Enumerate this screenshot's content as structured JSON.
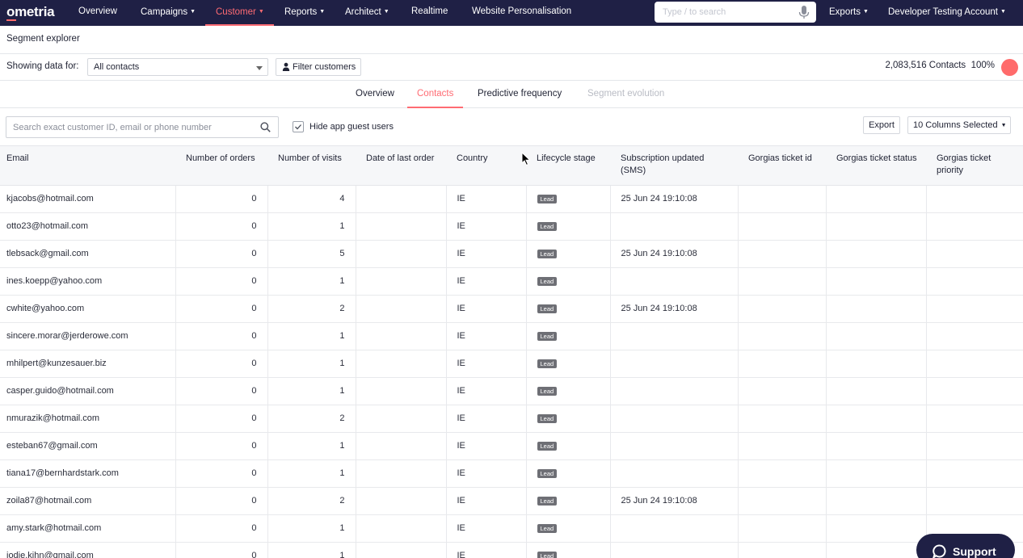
{
  "nav": {
    "logo": "ometria",
    "items": [
      {
        "label": "Overview",
        "caret": false,
        "active": false
      },
      {
        "label": "Campaigns",
        "caret": true,
        "active": false
      },
      {
        "label": "Customer",
        "caret": true,
        "active": true
      },
      {
        "label": "Reports",
        "caret": true,
        "active": false
      },
      {
        "label": "Architect",
        "caret": true,
        "active": false
      },
      {
        "label": "Realtime",
        "caret": false,
        "active": false
      },
      {
        "label": "Website Personalisation",
        "caret": false,
        "active": false
      }
    ],
    "search_placeholder": "Type / to search",
    "exports_label": "Exports",
    "account_label": "Developer Testing Account"
  },
  "page": {
    "title": "Segment explorer",
    "showing_label": "Showing data for:",
    "segment_value": "All contacts",
    "filter_label": "Filter customers",
    "contacts_count": "2,083,516 Contacts",
    "percent": "100%",
    "avatar_color": "#ff6b6b"
  },
  "tabs": [
    {
      "label": "Overview",
      "state": "normal"
    },
    {
      "label": "Contacts",
      "state": "active"
    },
    {
      "label": "Predictive frequency",
      "state": "normal"
    },
    {
      "label": "Segment evolution",
      "state": "disabled"
    }
  ],
  "toolbar": {
    "search_placeholder": "Search exact customer ID, email or phone number",
    "hide_guests_label": "Hide app guest users",
    "hide_guests_checked": true,
    "export_label": "Export",
    "columns_label": "10 Columns Selected"
  },
  "table": {
    "headers": [
      "Email",
      "Number of orders",
      "Number of visits",
      "Date of last order",
      "Country",
      "Lifecycle stage",
      "Subscription updated (SMS)",
      "Gorgias ticket id",
      "Gorgias ticket status",
      "Gorgias ticket priority"
    ],
    "rows": [
      [
        "kjacobs@hotmail.com",
        "0",
        "4",
        "",
        "IE",
        "Lead",
        "25 Jun 24 19:10:08",
        "",
        "",
        ""
      ],
      [
        "otto23@hotmail.com",
        "0",
        "1",
        "",
        "IE",
        "Lead",
        "",
        "",
        "",
        ""
      ],
      [
        "tlebsack@gmail.com",
        "0",
        "5",
        "",
        "IE",
        "Lead",
        "25 Jun 24 19:10:08",
        "",
        "",
        ""
      ],
      [
        "ines.koepp@yahoo.com",
        "0",
        "1",
        "",
        "IE",
        "Lead",
        "",
        "",
        "",
        ""
      ],
      [
        "cwhite@yahoo.com",
        "0",
        "2",
        "",
        "IE",
        "Lead",
        "25 Jun 24 19:10:08",
        "",
        "",
        ""
      ],
      [
        "sincere.morar@jerderowe.com",
        "0",
        "1",
        "",
        "IE",
        "Lead",
        "",
        "",
        "",
        ""
      ],
      [
        "mhilpert@kunzesauer.biz",
        "0",
        "1",
        "",
        "IE",
        "Lead",
        "",
        "",
        "",
        ""
      ],
      [
        "casper.guido@hotmail.com",
        "0",
        "1",
        "",
        "IE",
        "Lead",
        "",
        "",
        "",
        ""
      ],
      [
        "nmurazik@hotmail.com",
        "0",
        "2",
        "",
        "IE",
        "Lead",
        "",
        "",
        "",
        ""
      ],
      [
        "esteban67@gmail.com",
        "0",
        "1",
        "",
        "IE",
        "Lead",
        "",
        "",
        "",
        ""
      ],
      [
        "tiana17@bernhardstark.com",
        "0",
        "1",
        "",
        "IE",
        "Lead",
        "",
        "",
        "",
        ""
      ],
      [
        "zoila87@hotmail.com",
        "0",
        "2",
        "",
        "IE",
        "Lead",
        "25 Jun 24 19:10:08",
        "",
        "",
        ""
      ],
      [
        "amy.stark@hotmail.com",
        "0",
        "1",
        "",
        "IE",
        "Lead",
        "",
        "",
        "",
        ""
      ],
      [
        "jodie.kihn@gmail.com",
        "0",
        "1",
        "",
        "IE",
        "Lead",
        "",
        "",
        "",
        ""
      ]
    ]
  },
  "support": {
    "label": "Support"
  },
  "colors": {
    "nav_bg": "#1f2045",
    "accent": "#ff6b73",
    "badge_bg": "#6e6f75"
  }
}
